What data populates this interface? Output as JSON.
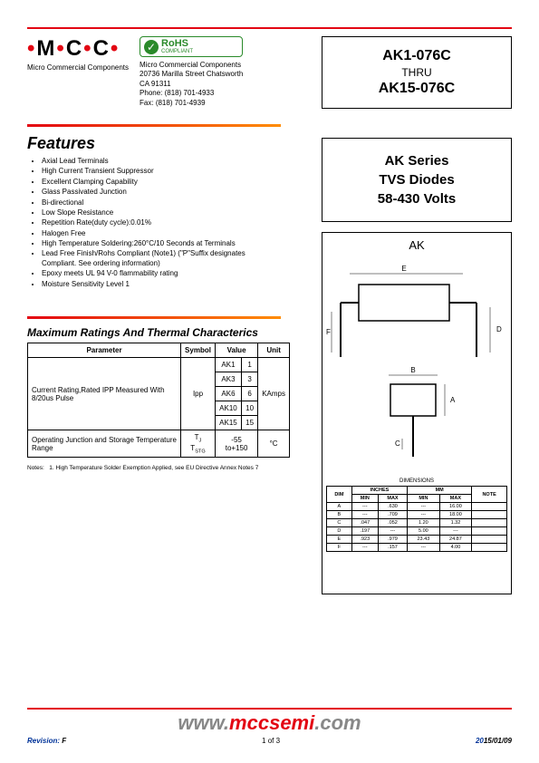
{
  "logo": {
    "text": "MCC",
    "subtitle": "Micro Commercial Components",
    "tm": "TM"
  },
  "rohs": {
    "main": "RoHS",
    "sub": "COMPLIANT"
  },
  "company": {
    "name": "Micro Commercial Components",
    "addr1": "20736 Marilla Street Chatsworth",
    "addr2": "CA 91311",
    "phone": "Phone:  (818) 701-4933",
    "fax": "Fax:       (818) 701-4939"
  },
  "part": {
    "top": "AK1-076C",
    "thru": "THRU",
    "bottom": "AK15-076C"
  },
  "series": {
    "l1": "AK Series",
    "l2": "TVS Diodes",
    "l3": "58-430 Volts"
  },
  "diagram": {
    "title": "AK"
  },
  "features": {
    "title": "Features",
    "items": [
      "Axial Lead Terminals",
      "High Current Transient Suppressor",
      "Excellent Clamping Capability",
      "Glass Passivated Junction",
      "Bi-directional",
      "Low Slope Resistance",
      "Repetition Rate(duty cycle):0.01%",
      "Halogen Free",
      "High Temperature Soldering:260°C/10 Seconds at Terminals",
      "Lead Free Finish/Rohs Compliant (Note1) (\"P\"Suffix designates Compliant.  See ordering information)",
      "Epoxy meets UL 94 V-0 flammability rating",
      "Moisture Sensitivity Level 1"
    ]
  },
  "ratings": {
    "title": "Maximum Ratings And Thermal Characterics",
    "headers": {
      "param": "Parameter",
      "symbol": "Symbol",
      "value": "Value",
      "unit": "Unit"
    },
    "ipp": {
      "param": "Current Rating,Rated IPP Measured With 8/20us Pulse",
      "symbol": "Ipp",
      "rows": [
        {
          "part": "AK1",
          "val": "1"
        },
        {
          "part": "AK3",
          "val": "3"
        },
        {
          "part": "AK6",
          "val": "6"
        },
        {
          "part": "AK10",
          "val": "10"
        },
        {
          "part": "AK15",
          "val": "15"
        }
      ],
      "unit": "KAmps"
    },
    "temp": {
      "param": "Operating Junction and Storage Temperature Range",
      "symbol_top": "T",
      "sub1": "J",
      "sub2": "STG",
      "value": "-55 to+150",
      "unit": "°C"
    }
  },
  "notes": {
    "label": "Notes:",
    "text": "1.   High Temperature Solder Exemption Applied, see EU Directive Annex Notes  7"
  },
  "dimensions": {
    "caption": "DIMENSIONS",
    "headers": {
      "dim": "DIM",
      "inches": "INCHES",
      "mm": "MM",
      "note": "NOTE",
      "min": "MIN",
      "max": "MAX"
    },
    "rows": [
      {
        "dim": "A",
        "imin": "---",
        "imax": ".630",
        "mmin": "---",
        "mmax": "16.00",
        "note": ""
      },
      {
        "dim": "B",
        "imin": "---",
        "imax": ".709",
        "mmin": "---",
        "mmax": "18.00",
        "note": ""
      },
      {
        "dim": "C",
        "imin": ".047",
        "imax": ".052",
        "mmin": "1.20",
        "mmax": "1.32",
        "note": ""
      },
      {
        "dim": "D",
        "imin": ".197",
        "imax": "---",
        "mmin": "5.00",
        "mmax": "---",
        "note": ""
      },
      {
        "dim": "E",
        "imin": ".923",
        "imax": ".979",
        "mmin": "23.43",
        "mmax": "24.87",
        "note": ""
      },
      {
        "dim": "F",
        "imin": "---",
        "imax": ".157",
        "mmin": "---",
        "mmax": "4.00",
        "note": ""
      }
    ]
  },
  "footer": {
    "url_www": "www.",
    "url_domain": "mccsemi",
    "url_com": ".com",
    "revision_label": "Revision:",
    "revision_val": "F",
    "page": "1 of 3",
    "date_blue": "20",
    "date_rest": "15/01/09"
  }
}
